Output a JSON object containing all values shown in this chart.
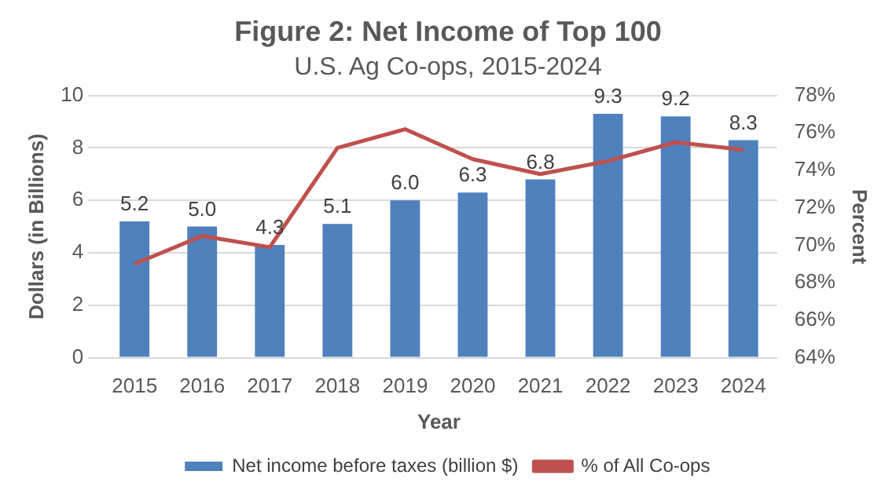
{
  "chart_data": {
    "type": "bar",
    "title": "Figure 2: Net Income of Top 100",
    "subtitle": "U.S. Ag Co-ops, 2015-2024",
    "xlabel": "Year",
    "ylabel": "Dollars (in Billions)",
    "y2label": "Percent",
    "categories": [
      "2015",
      "2016",
      "2017",
      "2018",
      "2019",
      "2020",
      "2021",
      "2022",
      "2023",
      "2024"
    ],
    "series": [
      {
        "name": "Net income before taxes (billion $)",
        "color": "#4f81bd",
        "values": [
          5.2,
          5.0,
          4.3,
          5.1,
          6.0,
          6.3,
          6.8,
          9.3,
          9.2,
          8.3
        ],
        "value_labels": [
          "5.2",
          "5.0",
          "4.3",
          "5.1",
          "6.0",
          "6.3",
          "6.8",
          "9.3",
          "9.2",
          "8.3"
        ]
      },
      {
        "name": "% of All Co-ops",
        "type": "line",
        "axis": "y2",
        "color": "#c0504d",
        "values": [
          69.0,
          70.5,
          69.9,
          75.2,
          76.2,
          74.6,
          73.8,
          74.5,
          75.5,
          75.1
        ]
      }
    ],
    "ylim": [
      0,
      10
    ],
    "yticks": [
      0,
      2,
      4,
      6,
      8,
      10
    ],
    "y2lim": [
      64,
      78
    ],
    "y2ticks": [
      {
        "value": 64,
        "label": "64%"
      },
      {
        "value": 66,
        "label": "66%"
      },
      {
        "value": 68,
        "label": "68%"
      },
      {
        "value": 70,
        "label": "70%"
      },
      {
        "value": 72,
        "label": "72%"
      },
      {
        "value": 74,
        "label": "74%"
      },
      {
        "value": 76,
        "label": "76%"
      },
      {
        "value": 78,
        "label": "78%"
      }
    ],
    "grid": "y",
    "legend": "bottom",
    "marker": "none",
    "line_style": "solid"
  }
}
